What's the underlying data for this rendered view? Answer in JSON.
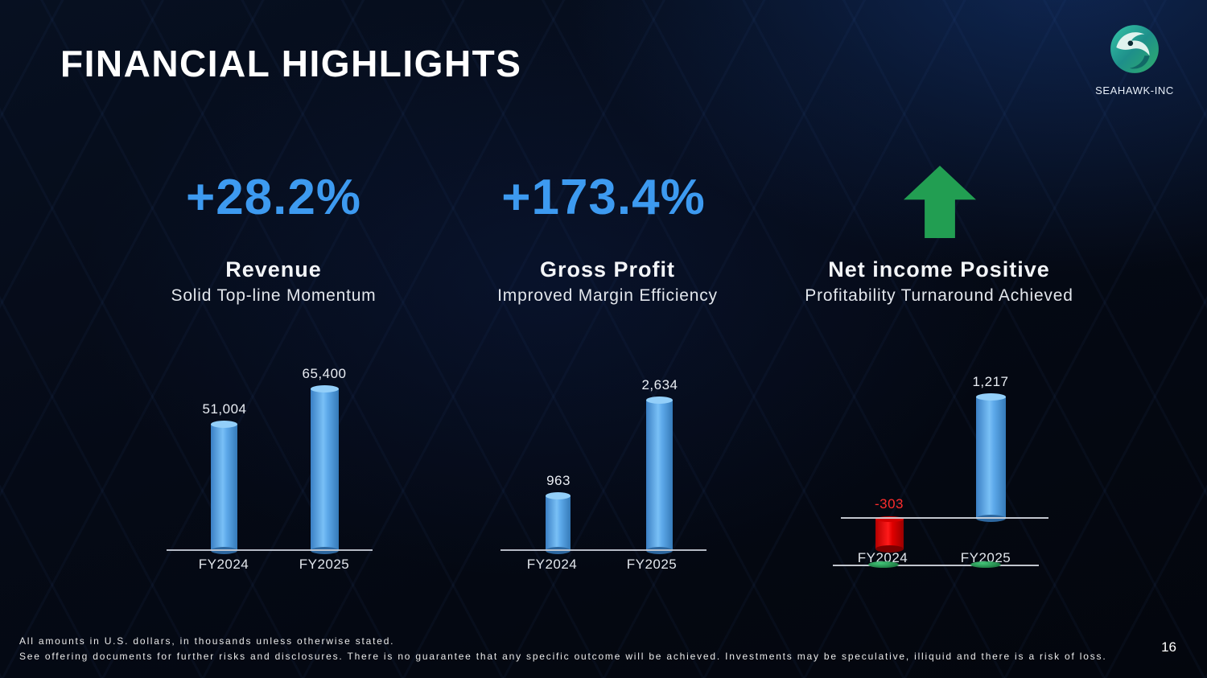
{
  "slide": {
    "title": "FINANCIAL HIGHLIGHTS",
    "brand": "SEAHAWK-INC",
    "page_number": "16"
  },
  "metrics": [
    {
      "value": "+28.2%",
      "name": "Revenue",
      "subtitle": "Solid Top-line Momentum"
    },
    {
      "value": "+173.4%",
      "name": "Gross Profit",
      "subtitle": "Improved Margin Efficiency"
    },
    {
      "icon": "up-arrow-icon",
      "name": "Net income Positive",
      "subtitle": "Profitability Turnaround Achieved"
    }
  ],
  "footnotes": {
    "line1": "All amounts in U.S. dollars, in thousands unless otherwise stated.",
    "line2": "See offering documents for further risks and disclosures. There is no guarantee that any specific outcome will be achieved. Investments may be speculative, illiquid and there is a risk of loss."
  },
  "colors": {
    "accent_blue": "#3d9af0",
    "bar_blue": "#5da9ea",
    "bar_red": "#e00000",
    "arrow_green": "#229e52"
  },
  "chart_data": [
    {
      "type": "bar",
      "title": "Revenue",
      "categories": [
        "FY2024",
        "FY2025"
      ],
      "values": [
        51004,
        65400
      ],
      "value_labels": [
        "51,004",
        "65,400"
      ],
      "growth_label": "+28.2%",
      "ylim": [
        0,
        65400
      ],
      "grid": false,
      "legend": false
    },
    {
      "type": "bar",
      "title": "Gross Profit",
      "categories": [
        "FY2024",
        "FY2025"
      ],
      "values": [
        963,
        2634
      ],
      "value_labels": [
        "963",
        "2,634"
      ],
      "growth_label": "+173.4%",
      "ylim": [
        0,
        2634
      ],
      "grid": false,
      "legend": false
    },
    {
      "type": "bar",
      "title": "Net Income",
      "categories": [
        "FY2024",
        "FY2025"
      ],
      "values": [
        -303,
        1217
      ],
      "value_labels": [
        "-303",
        "1,217"
      ],
      "ylim": [
        -400,
        1300
      ],
      "grid": false,
      "legend": false
    }
  ]
}
